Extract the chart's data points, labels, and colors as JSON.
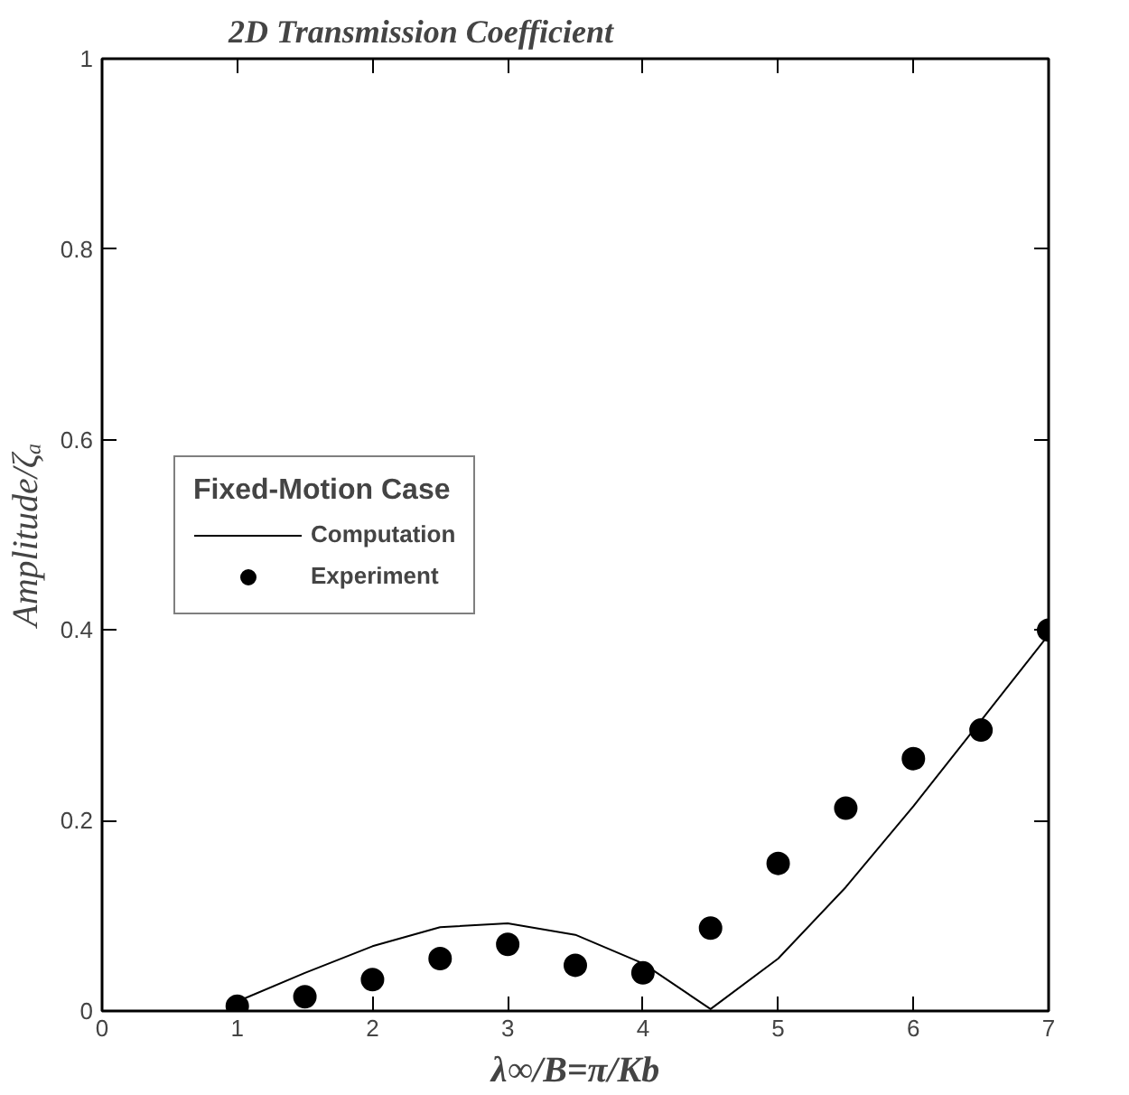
{
  "chart_data": {
    "type": "line",
    "title": "2D Transmission Coefficient",
    "xlabel": "λ∞/B=π/Kb",
    "ylabel": "Amplitude/ζₐ",
    "legend_title": "Fixed-Motion Case",
    "xlim": [
      0,
      7
    ],
    "ylim": [
      0,
      1
    ],
    "xticks": [
      0,
      1,
      2,
      3,
      4,
      5,
      6,
      7
    ],
    "yticks": [
      0,
      0.2,
      0.4,
      0.6,
      0.8,
      1
    ],
    "grid": false,
    "legend": "left",
    "series": [
      {
        "name": "Computation",
        "color": "#000000",
        "marker": "none",
        "line_style": "solid",
        "x": [
          1,
          1.5,
          2,
          2.5,
          3,
          3.5,
          4,
          4.5,
          5,
          5.5,
          6,
          6.5,
          7
        ],
        "values": [
          0.01,
          0.04,
          0.068,
          0.088,
          0.092,
          0.08,
          0.05,
          0.002,
          0.055,
          0.13,
          0.215,
          0.305,
          0.395
        ]
      },
      {
        "name": "Experiment",
        "type": "scatter",
        "color": "#000000",
        "marker": "circle",
        "x": [
          1,
          1.5,
          2,
          2.5,
          3,
          3.5,
          4,
          4.5,
          5,
          5.5,
          6,
          6.5,
          7
        ],
        "values": [
          0.005,
          0.015,
          0.033,
          0.055,
          0.07,
          0.048,
          0.04,
          0.087,
          0.155,
          0.213,
          0.265,
          0.295,
          0.4
        ]
      }
    ]
  }
}
